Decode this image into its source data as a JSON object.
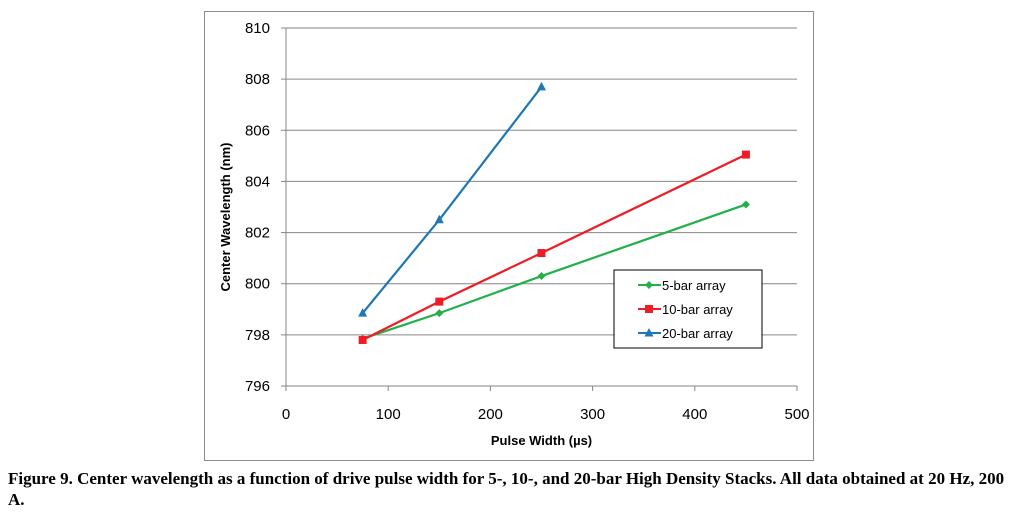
{
  "chart_data": {
    "type": "line",
    "xlabel": "Pulse Width (µs)",
    "ylabel": "Center Wavelength (nm)",
    "xlim": [
      0,
      500
    ],
    "ylim": [
      796,
      810
    ],
    "xticks": [
      "0",
      "100",
      "200",
      "300",
      "400",
      "500"
    ],
    "yticks": [
      "796",
      "798",
      "800",
      "802",
      "804",
      "806",
      "808",
      "810"
    ],
    "grid": "horizontal",
    "legend_position": "lower-right",
    "series": [
      {
        "name": "5-bar array",
        "color": "#22b04a",
        "marker": "diamond",
        "x": [
          75,
          150,
          250,
          450
        ],
        "y": [
          797.85,
          798.85,
          800.3,
          803.1
        ]
      },
      {
        "name": "10-bar array",
        "color": "#ee1c24",
        "marker": "square",
        "x": [
          75,
          150,
          250,
          450
        ],
        "y": [
          797.8,
          799.3,
          801.2,
          805.05
        ]
      },
      {
        "name": "20-bar array",
        "color": "#1f77b4",
        "marker": "triangle",
        "x": [
          75,
          150,
          250
        ],
        "y": [
          798.85,
          802.5,
          807.7
        ]
      }
    ]
  },
  "caption": "Figure 9.  Center wavelength as a function of drive pulse width for 5-, 10-, and 20-bar High Density Stacks.  All data obtained at 20 Hz, 200 A."
}
